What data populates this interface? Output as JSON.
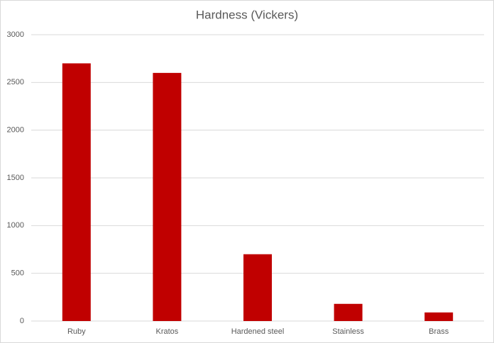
{
  "chart_data": {
    "type": "bar",
    "title": "Hardness (Vickers)",
    "categories": [
      "Ruby",
      "Kratos",
      "Hardened steel",
      "Stainless",
      "Brass"
    ],
    "values": [
      2700,
      2600,
      700,
      180,
      90
    ],
    "color": "#c00000",
    "ylim": [
      0,
      3000
    ],
    "yticks": [
      0,
      500,
      1000,
      1500,
      2000,
      2500,
      3000
    ],
    "grid": true
  }
}
